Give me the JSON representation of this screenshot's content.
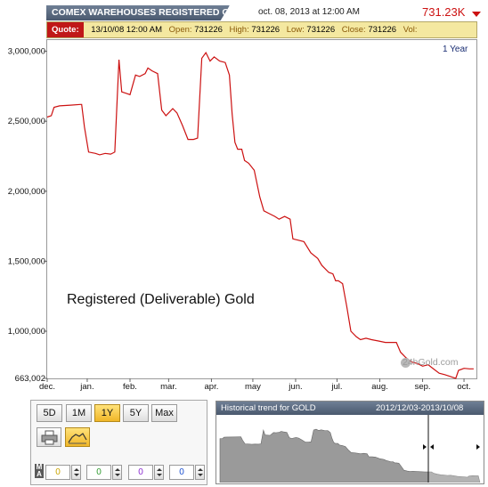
{
  "header": {
    "title": "COMEX WAREHOUSES REGISTERED G",
    "date": "oct. 08, 2013 at 12:00 AM",
    "value": "731.23K",
    "change_direction": "down",
    "accent_color": "#cc1111"
  },
  "quote": {
    "label": "Quote:",
    "datetime": "13/10/08 12:00 AM",
    "open_label": "Open:",
    "open": "731226",
    "high_label": "High:",
    "high": "731226",
    "low_label": "Low:",
    "low": "731226",
    "close_label": "Close:",
    "close": "731226",
    "vol_label": "Vol:",
    "vol": ""
  },
  "chart_data": {
    "type": "line",
    "range_label": "1 Year",
    "annotation": "Registered (Deliverable) Gold",
    "watermark": "24hGold.com",
    "line_color": "#cc1111",
    "ylim": [
      663002,
      3080000
    ],
    "yticks": [
      663002,
      1000000,
      1500000,
      2000000,
      2500000,
      3000000
    ],
    "ytick_labels": [
      "663,002",
      "1,000,000",
      "1,500,000",
      "2,000,000",
      "2,500,000",
      "3,000,000"
    ],
    "xticks": [
      {
        "label": "dec.",
        "x": "2012-12-03"
      },
      {
        "label": "jan.",
        "x": "2013-01-01"
      },
      {
        "label": "feb.",
        "x": "2013-02-01"
      },
      {
        "label": "mar.",
        "x": "2013-03-01"
      },
      {
        "label": "apr.",
        "x": "2013-04-01"
      },
      {
        "label": "may",
        "x": "2013-05-01"
      },
      {
        "label": "jun.",
        "x": "2013-06-01"
      },
      {
        "label": "jul.",
        "x": "2013-07-01"
      },
      {
        "label": "aug.",
        "x": "2013-08-01"
      },
      {
        "label": "sep.",
        "x": "2013-09-01"
      },
      {
        "label": "oct.",
        "x": "2013-10-01"
      }
    ],
    "xlim": [
      "2012-12-03",
      "2013-10-10"
    ],
    "series": [
      {
        "points": [
          [
            "2012-12-03",
            2530000
          ],
          [
            "2012-12-06",
            2540000
          ],
          [
            "2012-12-08",
            2600000
          ],
          [
            "2012-12-12",
            2610000
          ],
          [
            "2012-12-20",
            2615000
          ],
          [
            "2012-12-27",
            2620000
          ],
          [
            "2012-12-28",
            2620000
          ],
          [
            "2012-12-30",
            2460000
          ],
          [
            "2013-01-02",
            2280000
          ],
          [
            "2013-01-07",
            2270000
          ],
          [
            "2013-01-10",
            2260000
          ],
          [
            "2013-01-14",
            2270000
          ],
          [
            "2013-01-18",
            2265000
          ],
          [
            "2013-01-21",
            2280000
          ],
          [
            "2013-01-24",
            2940000
          ],
          [
            "2013-01-26",
            2710000
          ],
          [
            "2013-01-29",
            2700000
          ],
          [
            "2013-02-01",
            2690000
          ],
          [
            "2013-02-05",
            2830000
          ],
          [
            "2013-02-08",
            2820000
          ],
          [
            "2013-02-12",
            2840000
          ],
          [
            "2013-02-14",
            2880000
          ],
          [
            "2013-02-17",
            2860000
          ],
          [
            "2013-02-21",
            2840000
          ],
          [
            "2013-02-24",
            2580000
          ],
          [
            "2013-02-27",
            2540000
          ],
          [
            "2013-03-01",
            2560000
          ],
          [
            "2013-03-04",
            2590000
          ],
          [
            "2013-03-07",
            2560000
          ],
          [
            "2013-03-11",
            2470000
          ],
          [
            "2013-03-15",
            2370000
          ],
          [
            "2013-03-19",
            2370000
          ],
          [
            "2013-03-22",
            2380000
          ],
          [
            "2013-03-25",
            2950000
          ],
          [
            "2013-03-28",
            2990000
          ],
          [
            "2013-03-31",
            2930000
          ],
          [
            "2013-04-03",
            2960000
          ],
          [
            "2013-04-07",
            2930000
          ],
          [
            "2013-04-11",
            2920000
          ],
          [
            "2013-04-14",
            2830000
          ],
          [
            "2013-04-16",
            2550000
          ],
          [
            "2013-04-18",
            2350000
          ],
          [
            "2013-04-20",
            2300000
          ],
          [
            "2013-04-23",
            2300000
          ],
          [
            "2013-04-25",
            2220000
          ],
          [
            "2013-04-28",
            2200000
          ],
          [
            "2013-05-02",
            2150000
          ],
          [
            "2013-05-06",
            1960000
          ],
          [
            "2013-05-09",
            1860000
          ],
          [
            "2013-05-13",
            1840000
          ],
          [
            "2013-05-17",
            1820000
          ],
          [
            "2013-05-20",
            1800000
          ],
          [
            "2013-05-24",
            1820000
          ],
          [
            "2013-05-28",
            1800000
          ],
          [
            "2013-05-30",
            1660000
          ],
          [
            "2013-06-03",
            1650000
          ],
          [
            "2013-06-07",
            1640000
          ],
          [
            "2013-06-12",
            1560000
          ],
          [
            "2013-06-17",
            1520000
          ],
          [
            "2013-06-20",
            1470000
          ],
          [
            "2013-06-25",
            1420000
          ],
          [
            "2013-06-28",
            1410000
          ],
          [
            "2013-06-30",
            1360000
          ],
          [
            "2013-07-02",
            1360000
          ],
          [
            "2013-07-05",
            1340000
          ],
          [
            "2013-07-08",
            1180000
          ],
          [
            "2013-07-11",
            1000000
          ],
          [
            "2013-07-15",
            960000
          ],
          [
            "2013-07-18",
            940000
          ],
          [
            "2013-07-22",
            950000
          ],
          [
            "2013-07-26",
            940000
          ],
          [
            "2013-07-31",
            930000
          ],
          [
            "2013-08-05",
            920000
          ],
          [
            "2013-08-09",
            920000
          ],
          [
            "2013-08-13",
            920000
          ],
          [
            "2013-08-16",
            850000
          ],
          [
            "2013-08-20",
            810000
          ],
          [
            "2013-08-24",
            780000
          ],
          [
            "2013-08-28",
            770000
          ],
          [
            "2013-09-01",
            750000
          ],
          [
            "2013-09-05",
            760000
          ],
          [
            "2013-09-09",
            730000
          ],
          [
            "2013-09-13",
            700000
          ],
          [
            "2013-09-17",
            690000
          ],
          [
            "2013-09-20",
            680000
          ],
          [
            "2013-09-23",
            670000
          ],
          [
            "2013-09-25",
            663002
          ],
          [
            "2013-09-27",
            720000
          ],
          [
            "2013-10-01",
            735000
          ],
          [
            "2013-10-05",
            731226
          ],
          [
            "2013-10-08",
            731226
          ]
        ]
      }
    ]
  },
  "controls": {
    "ranges": [
      "5D",
      "1M",
      "1Y",
      "5Y",
      "Max"
    ],
    "active_range": "1Y",
    "tools": [
      {
        "icon": "printer-icon",
        "active": false
      },
      {
        "icon": "line-chart-icon",
        "active": true
      }
    ],
    "ma_label": "M A",
    "ma_values": [
      {
        "value": "0",
        "color": "#c9a400"
      },
      {
        "value": "0",
        "color": "#2e9a2e"
      },
      {
        "value": "0",
        "color": "#8a2bd0"
      },
      {
        "value": "0",
        "color": "#1a4fd0"
      }
    ]
  },
  "historical": {
    "title": "Historical trend for GOLD",
    "range": "2012/12/03-2013/10/08",
    "fill_color": "#9a9a9a"
  }
}
